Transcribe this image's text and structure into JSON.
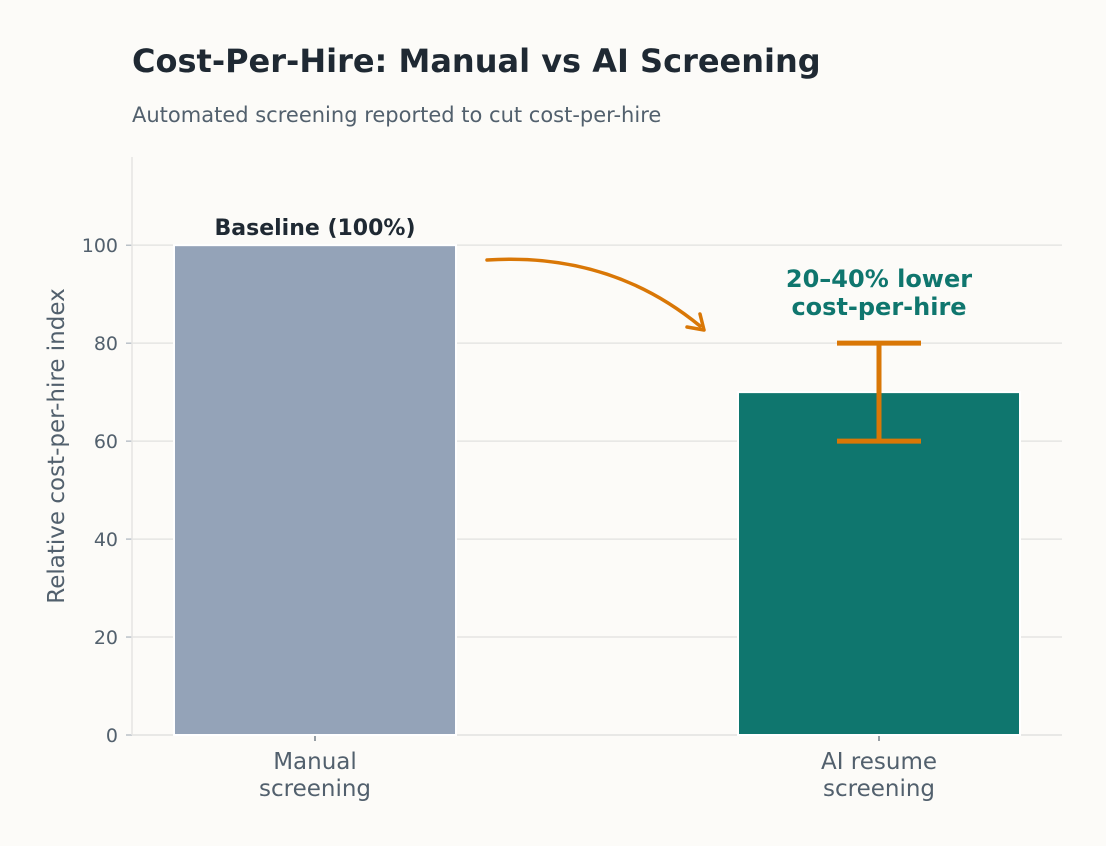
{
  "colors": {
    "background": "#fcfbf8",
    "manual_bar": "#94a3b8",
    "ai_bar": "#0f766e",
    "accent": "#d97706",
    "grid": "#e5e5e3",
    "text_dark": "#1f2933",
    "text_muted": "#52606d"
  },
  "chart_data": {
    "type": "bar",
    "title": "Cost-Per-Hire: Manual vs AI Screening",
    "subtitle": "Automated screening reported to cut cost-per-hire",
    "xlabel": "",
    "ylabel": "Relative cost-per-hire index",
    "ylim": [
      0,
      118
    ],
    "yticks": [
      0,
      20,
      40,
      60,
      80,
      100
    ],
    "grid": true,
    "categories": [
      {
        "lines": [
          "Manual",
          "screening"
        ]
      },
      {
        "lines": [
          "AI resume",
          "screening"
        ]
      }
    ],
    "values": [
      100,
      70
    ],
    "bar_labels": [
      "Baseline (100%)",
      ""
    ],
    "error_range": {
      "category_index": 1,
      "low": 60,
      "high": 80
    },
    "annotation": {
      "lines": [
        "20–40% lower",
        "cost-per-hire"
      ],
      "category_index": 1,
      "arrow": "from manual bar toward AI bar"
    }
  }
}
